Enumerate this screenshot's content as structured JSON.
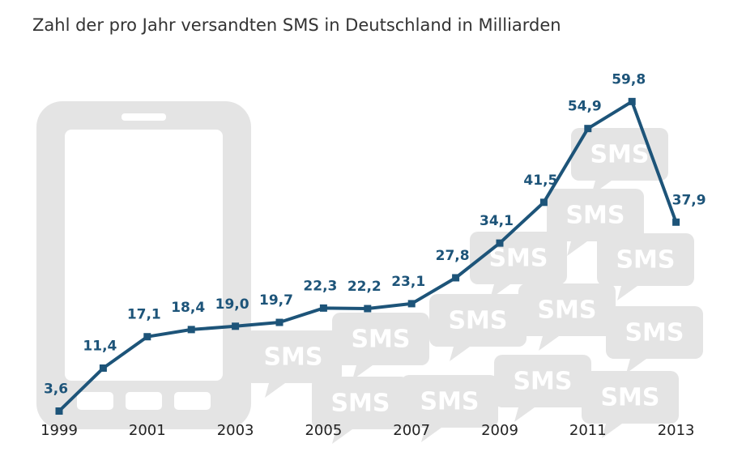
{
  "chart_data": {
    "type": "line",
    "title": "Zahl der pro Jahr versandten SMS in Deutschland in Milliarden",
    "categories": [
      "1999",
      null,
      "2001",
      null,
      "2003",
      null,
      "2005",
      null,
      "2007",
      null,
      "2009",
      null,
      "2011",
      null,
      "2013"
    ],
    "values": [
      3.6,
      11.4,
      17.1,
      18.4,
      19.0,
      19.7,
      22.3,
      22.2,
      23.1,
      27.8,
      34.1,
      41.5,
      54.9,
      59.8,
      37.9
    ],
    "value_labels": [
      "3,6",
      "11,4",
      "17,1",
      "18,4",
      "19,0",
      "19,7",
      "22,3",
      "22,2",
      "23,1",
      "27,8",
      "34,1",
      "41,5",
      "54,9",
      "59,8",
      "37,9"
    ],
    "color": "#1d5479",
    "background_label": "SMS"
  }
}
